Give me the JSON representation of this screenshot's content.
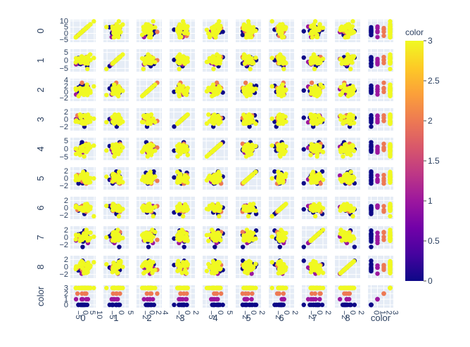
{
  "chart_data": {
    "type": "scatter",
    "subtype": "scatter-matrix",
    "dimensions": [
      "0",
      "1",
      "2",
      "3",
      "4",
      "5",
      "6",
      "7",
      "8",
      "color"
    ],
    "color_dimension": "color",
    "color_classes": [
      0,
      1,
      2,
      3
    ],
    "class_counts": [
      13,
      5,
      4,
      28
    ],
    "colorscale": [
      "#0d0887",
      "#46039f",
      "#7201a8",
      "#9c179e",
      "#bd3786",
      "#d8576b",
      "#ed7953",
      "#fb9f3a",
      "#fdca26",
      "#f0f921"
    ],
    "colorbar": {
      "title": "color",
      "range": [
        0,
        3
      ],
      "tickvals": [
        0,
        0.5,
        1,
        1.5,
        2,
        2.5,
        3
      ],
      "ticktext": [
        "0",
        "0.5",
        "1",
        "1.5",
        "2",
        "2.5",
        "3"
      ]
    },
    "axis_ticks": {
      "0": {
        "values": [
          -5,
          0,
          5,
          10
        ],
        "labels": [
          "−5",
          "0",
          "5",
          "10"
        ]
      },
      "1": {
        "values": [
          -5,
          0,
          5
        ],
        "labels": [
          "−5",
          "0",
          "5"
        ]
      },
      "2": {
        "values": [
          -2,
          0,
          2,
          4
        ],
        "labels": [
          "−2",
          "0",
          "2",
          "4"
        ]
      },
      "3": {
        "values": [
          -2,
          0,
          2
        ],
        "labels": [
          "−2",
          "0",
          "2"
        ]
      },
      "4": {
        "values": [
          -5,
          0,
          5
        ],
        "labels": [
          "−5",
          "0",
          "5"
        ]
      },
      "5": {
        "values": [
          -2,
          0,
          2
        ],
        "labels": [
          "−2",
          "0",
          "2"
        ]
      },
      "6": {
        "values": [
          -2,
          0,
          2
        ],
        "labels": [
          "−2",
          "0",
          "2"
        ]
      },
      "7": {
        "values": [
          -2,
          0,
          2
        ],
        "labels": [
          "−2",
          "0",
          "2"
        ]
      },
      "8": {
        "values": [
          -2,
          0,
          2
        ],
        "labels": [
          "−2",
          "0",
          "2"
        ]
      },
      "color": {
        "values": [
          0,
          1,
          2,
          3
        ],
        "labels": [
          "0",
          "1",
          "2",
          "3"
        ]
      }
    },
    "axis_ranges": {
      "0": [
        -7,
        11
      ],
      "1": [
        -7,
        7
      ],
      "2": [
        -3,
        4.5
      ],
      "3": [
        -3,
        3
      ],
      "4": [
        -7,
        7
      ],
      "5": [
        -3,
        3
      ],
      "6": [
        -3,
        3
      ],
      "7": [
        -3,
        3
      ],
      "8": [
        -3,
        3
      ],
      "color": [
        -0.5,
        3.5
      ]
    },
    "grid": true
  }
}
